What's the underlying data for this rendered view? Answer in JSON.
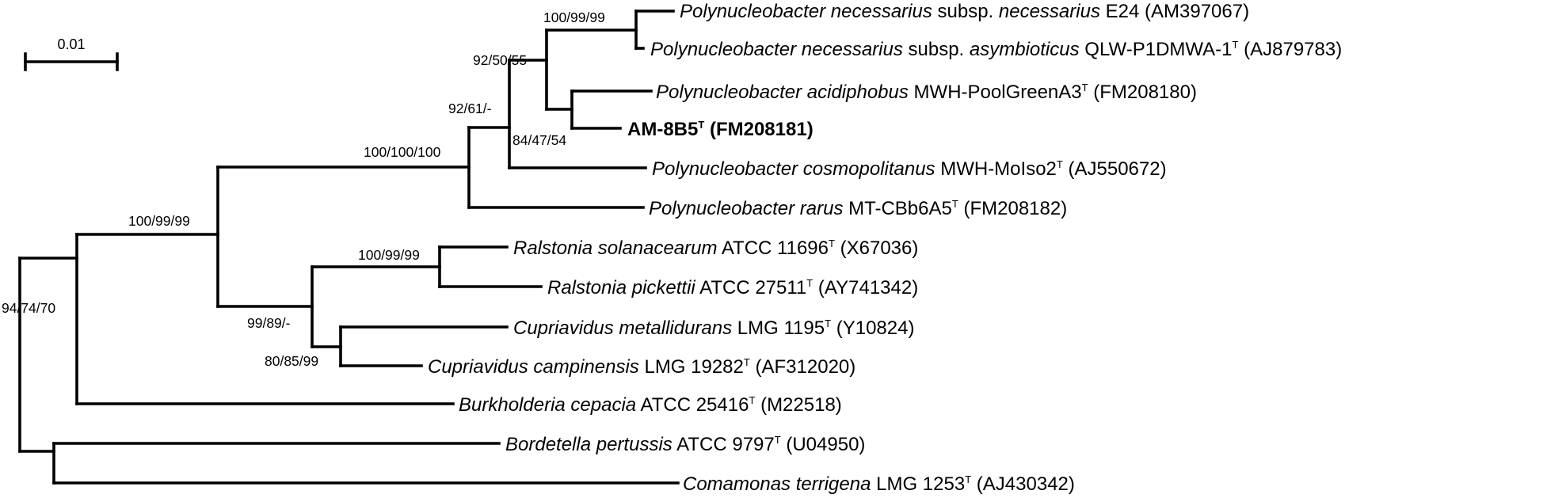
{
  "scale_bar": {
    "label": "0.01"
  },
  "taxa": [
    {
      "genus": "Polynucleobacter necessarius",
      "rest": " subsp. ",
      "subsp": "necessarius",
      "strain": " E24 ",
      "type": "",
      "acc": "(AM397067)",
      "bold": false
    },
    {
      "genus": "Polynucleobacter necessarius",
      "rest": " subsp. ",
      "subsp": "asymbioticus",
      "strain": " QLW-P1DMWA-1",
      "type": "T",
      "acc": " (AJ879783)",
      "bold": false
    },
    {
      "genus": "Polynucleobacter acidiphobus",
      "rest": "",
      "subsp": "",
      "strain": " MWH-PoolGreenA3",
      "type": "T",
      "acc": " (FM208180)",
      "bold": false
    },
    {
      "genus": "",
      "rest": "",
      "subsp": "",
      "strain": "AM-8B5",
      "type": "T",
      "acc": " (FM208181)",
      "bold": true
    },
    {
      "genus": "Polynucleobacter cosmopolitanus",
      "rest": "",
      "subsp": "",
      "strain": " MWH-MoIso2",
      "type": "T",
      "acc": " (AJ550672)",
      "bold": false
    },
    {
      "genus": "Polynucleobacter rarus",
      "rest": "",
      "subsp": "",
      "strain": " MT-CBb6A5",
      "type": "T",
      "acc": "  (FM208182)",
      "bold": false
    },
    {
      "genus": "Ralstonia solanacearum",
      "rest": "",
      "subsp": "",
      "strain": " ATCC 11696",
      "type": "T",
      "acc": " (X67036)",
      "bold": false
    },
    {
      "genus": "Ralstonia pickettii",
      "rest": "",
      "subsp": "",
      "strain": " ATCC 27511",
      "type": "T",
      "acc": "  (AY741342)",
      "bold": false
    },
    {
      "genus": "Cupriavidus metallidurans",
      "rest": "",
      "subsp": "",
      "strain": " LMG 1195",
      "type": "T",
      "acc": " (Y10824)",
      "bold": false
    },
    {
      "genus": "Cupriavidus campinensis",
      "rest": "",
      "subsp": "",
      "strain": " LMG 19282",
      "type": "T",
      "acc": " (AF312020)",
      "bold": false
    },
    {
      "genus": "Burkholderia cepacia",
      "rest": "",
      "subsp": "",
      "strain": " ATCC 25416",
      "type": "T",
      "acc": "  (M22518)",
      "bold": false
    },
    {
      "genus": "Bordetella pertussis",
      "rest": "",
      "subsp": "",
      "strain": " ATCC 9797",
      "type": "T",
      "acc": "  (U04950)",
      "bold": false
    },
    {
      "genus": "Comamonas terrigena",
      "rest": "",
      "subsp": "",
      "strain": " LMG 1253",
      "type": "T",
      "acc": " (AJ430342)",
      "bold": false
    }
  ],
  "bootstrap": [
    "100/99/99",
    "92/50/55",
    "84/47/54",
    "92/61/-",
    "100/100/100",
    "100/99/99",
    "99/89/-",
    "80/85/99",
    "100/99/99",
    "94/74/70"
  ]
}
